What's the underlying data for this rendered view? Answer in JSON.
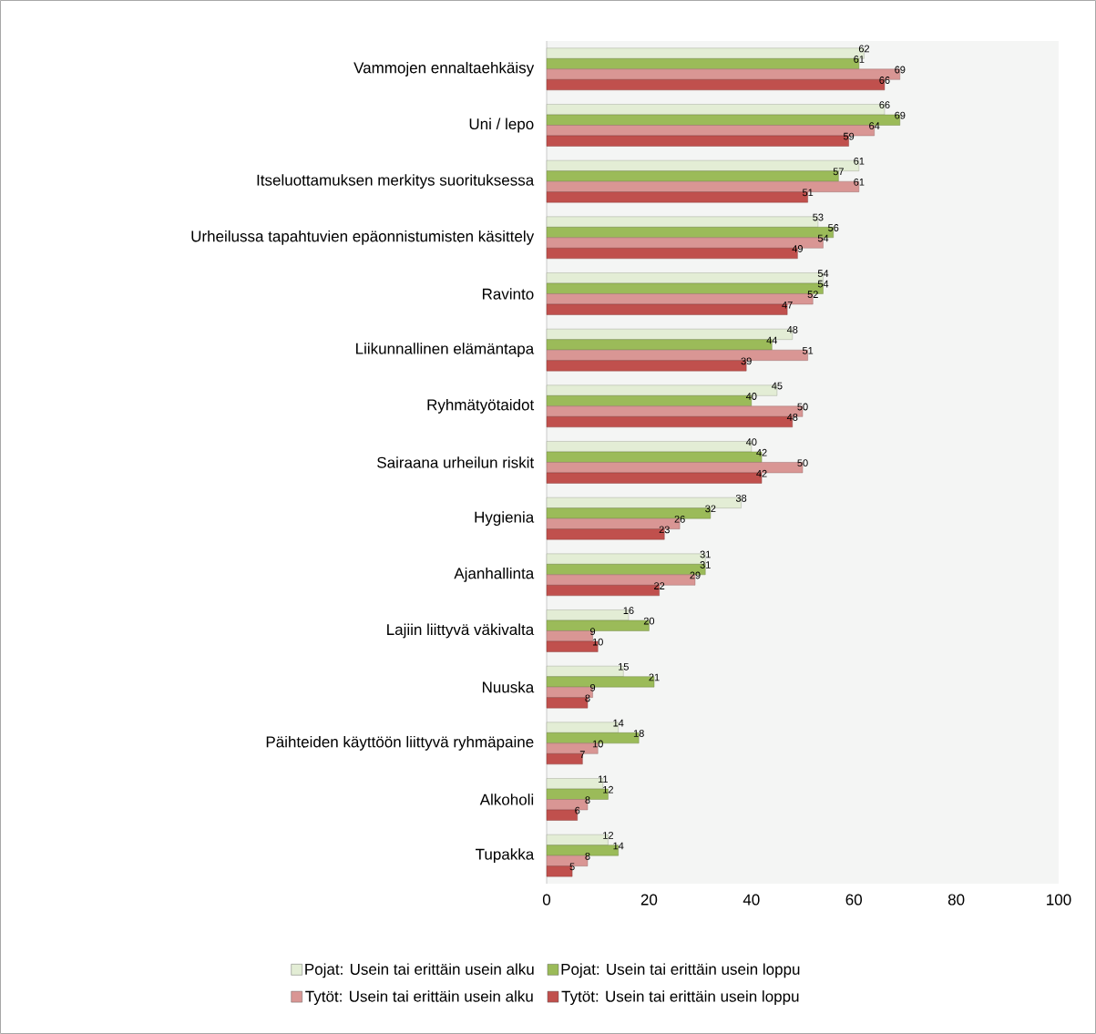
{
  "chart_data": {
    "type": "bar",
    "orientation": "horizontal",
    "data_labels": true,
    "legend": "bottom",
    "categories": [
      "Vammojen ennaltaehkäisy",
      "Uni / lepo",
      "Itseluottamuksen merkitys suorituksessa",
      "Urheilussa tapahtuvien epäonnistumisten käsittely",
      "Ravinto",
      "Liikunnallinen elämäntapa",
      "Ryhmätyötaidot",
      "Sairaana urheilun riskit",
      "Hygienia",
      "Ajanhallinta",
      "Lajiin liittyvä väkivalta",
      "Nuuska",
      "Päihteiden käyttöön liittyvä ryhmäpaine",
      "Alkoholi",
      "Tupakka"
    ],
    "series": [
      {
        "name": "Pojat: Usein tai erittäin usein alku",
        "color": "#e3edd5",
        "values": [
          62,
          66,
          61,
          53,
          54,
          48,
          45,
          40,
          38,
          31,
          16,
          15,
          14,
          11,
          12
        ]
      },
      {
        "name": "Pojat: Usein tai erittäin usein loppu",
        "color": "#9bbb59",
        "values": [
          61,
          69,
          57,
          56,
          54,
          44,
          40,
          42,
          32,
          31,
          20,
          21,
          18,
          12,
          14
        ]
      },
      {
        "name": "Tytöt: Usein tai erittäin usein alku",
        "color": "#d99694",
        "values": [
          69,
          64,
          61,
          54,
          52,
          51,
          50,
          50,
          26,
          29,
          9,
          9,
          10,
          8,
          8
        ]
      },
      {
        "name": "Tytöt: Usein tai erittäin usein loppu",
        "color": "#c0504d",
        "values": [
          66,
          59,
          51,
          49,
          47,
          39,
          48,
          42,
          23,
          22,
          10,
          8,
          7,
          6,
          5
        ]
      }
    ],
    "xlim": [
      0,
      100
    ],
    "xticks": [
      0,
      20,
      40,
      60,
      80,
      100
    ]
  }
}
